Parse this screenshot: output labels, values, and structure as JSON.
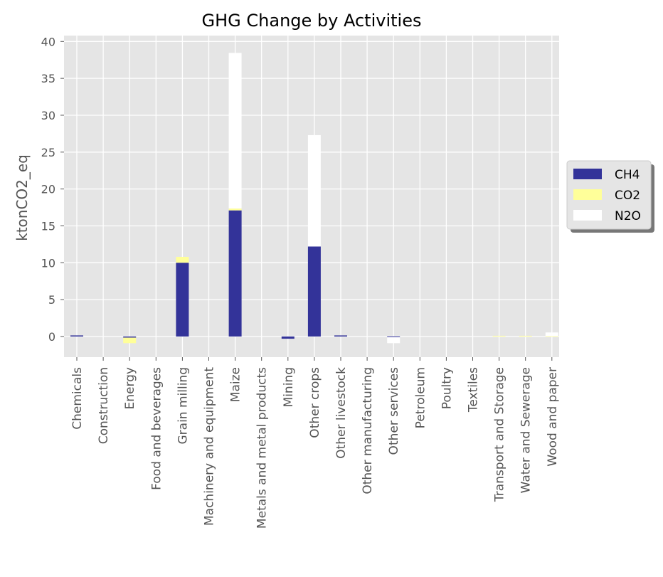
{
  "chart_data": {
    "type": "bar",
    "stacked": true,
    "title": "GHG Change by Activities",
    "xlabel": "",
    "ylabel": "ktonCO2_eq",
    "ylim": [
      -2.8,
      40.8
    ],
    "yticks": [
      0,
      5,
      10,
      15,
      20,
      25,
      30,
      35,
      40
    ],
    "grid": true,
    "legend_position": "right",
    "categories": [
      "Chemicals",
      "Construction",
      "Energy",
      "Food and beverages",
      "Grain milling",
      "Machinery and equipment",
      "Maize",
      "Metals and metal products",
      "Mining",
      "Other crops",
      "Other livestock",
      "Other manufacturing",
      "Other services",
      "Petroleum",
      "Poultry",
      "Textiles",
      "Transport and Storage",
      "Water and Sewerage",
      "Wood and paper"
    ],
    "series": [
      {
        "name": "CH4",
        "color": "#333399",
        "values": [
          0.15,
          0,
          -0.15,
          0,
          10.0,
          0,
          17.1,
          0,
          -0.3,
          12.2,
          0.15,
          0,
          -0.1,
          0,
          0,
          0,
          0,
          0,
          0
        ]
      },
      {
        "name": "CO2",
        "color": "#ffff99",
        "values": [
          0,
          0,
          -0.75,
          0,
          0.8,
          0,
          0.25,
          0,
          0,
          0,
          0,
          0,
          0,
          0,
          0,
          0,
          0.1,
          0.1,
          0.05
        ]
      },
      {
        "name": "N2O",
        "color": "#ffffff",
        "values": [
          0,
          0,
          0,
          0,
          0,
          0,
          21.1,
          0,
          0,
          15.1,
          0,
          0,
          -0.8,
          0,
          0,
          0,
          0,
          0,
          0.5
        ]
      }
    ]
  }
}
